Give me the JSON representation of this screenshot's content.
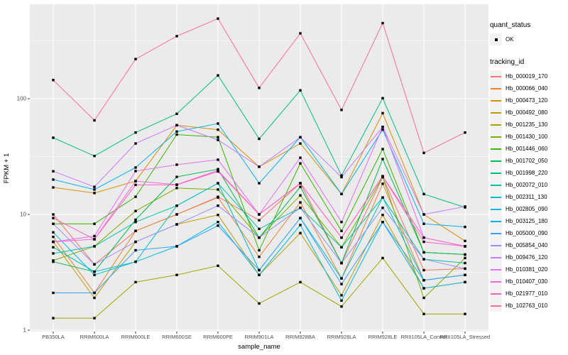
{
  "figure": {
    "background": "#FFFFFF",
    "panel_background": "#EBEBEB",
    "grid_major_color": "#FFFFFF",
    "grid_minor_color": "#F7F7F7",
    "tick_label_color": "#4D4D4D",
    "axis_title_color": "#000000",
    "tick_mark_color": "#333333",
    "point_color": "#000000",
    "legend_key_background": "#F2F2F2"
  },
  "legend": {
    "quant_status_title": "quant_status",
    "quant_status_items": [
      {
        "label": "OK",
        "marker": "black-point"
      }
    ],
    "tracking_id_title": "tracking_id"
  },
  "chart_data": {
    "type": "line",
    "title": "",
    "xlabel": "sample_name",
    "ylabel": "FPKM + 1",
    "y_scale": "log10",
    "ylim": [
      0.97,
      660
    ],
    "grid": true,
    "legend_position": "right",
    "yticks": [
      {
        "value": 1,
        "label": "1"
      },
      {
        "value": 10,
        "label": "10"
      },
      {
        "value": 100,
        "label": "100"
      }
    ],
    "minor_gridline_values": [
      3.162,
      31.62,
      316.2
    ],
    "categories": [
      "PB350LA",
      "RRIM600LA",
      "RRIM600LE",
      "RRIM600SE",
      "RRIM600PE",
      "RRIM901LA",
      "RRIM928BA",
      "RRIM928LA",
      "RRIM928LE",
      "RRII105LA_Control",
      "RRII105LA_Stressed"
    ],
    "series": [
      {
        "name": "Hb_000019_170",
        "color": "#F8766D",
        "values": [
          10,
          3.7,
          7.2,
          10,
          14.2,
          8.9,
          18.6,
          3.8,
          21,
          3.3,
          3.4
        ]
      },
      {
        "name": "Hb_000066_040",
        "color": "#EA8331",
        "values": [
          6.4,
          2.1,
          7.2,
          10,
          14,
          4.3,
          12.7,
          2.8,
          18.4,
          2.7,
          3.0
        ]
      },
      {
        "name": "Hb_000473_120",
        "color": "#D89000",
        "values": [
          17.1,
          15.3,
          19.4,
          59,
          54,
          25.8,
          41,
          15,
          75,
          10,
          5.9
        ]
      },
      {
        "name": "Hb_000492_080",
        "color": "#C09B00",
        "values": [
          5.8,
          1.9,
          5.8,
          8.2,
          9.9,
          3.0,
          6.9,
          2.0,
          9.9,
          2.3,
          2.6
        ]
      },
      {
        "name": "Hb_001235_130",
        "color": "#A3A500",
        "values": [
          1.27,
          1.27,
          2.6,
          3.0,
          3.6,
          1.7,
          2.6,
          1.6,
          4.2,
          1.38,
          1.38
        ]
      },
      {
        "name": "Hb_001430_100",
        "color": "#7CAE00",
        "values": [
          4.0,
          5.3,
          10.7,
          16.9,
          16.4,
          6.3,
          14.6,
          5.2,
          21,
          1.9,
          4.2
        ]
      },
      {
        "name": "Hb_001446_060",
        "color": "#39B600",
        "values": [
          8.3,
          8.3,
          14.2,
          49,
          46.5,
          4.9,
          27.6,
          7.2,
          36.7,
          4.7,
          4.5
        ]
      },
      {
        "name": "Hb_001702_050",
        "color": "#00BB4E",
        "values": [
          3.9,
          3.2,
          9.0,
          21.1,
          24.6,
          6.3,
          17.3,
          3.8,
          30.1,
          4.7,
          4.5
        ]
      },
      {
        "name": "Hb_001998_220",
        "color": "#00BF7D",
        "values": [
          46,
          32,
          51,
          74,
          159,
          45,
          118,
          21.7,
          101,
          15,
          11.5
        ]
      },
      {
        "name": "Hb_002072_010",
        "color": "#00C1A3",
        "values": [
          4.6,
          5.3,
          8.6,
          11.9,
          18.6,
          7.5,
          11.4,
          5.2,
          14,
          4.1,
          3.8
        ]
      },
      {
        "name": "Hb_002311_130",
        "color": "#00BFC4",
        "values": [
          5.2,
          3.2,
          3.9,
          11.9,
          18.6,
          3.3,
          9.3,
          2.8,
          14,
          2.7,
          3.0
        ]
      },
      {
        "name": "Hb_002805_090",
        "color": "#00BAE0",
        "values": [
          7.0,
          3.0,
          3.9,
          5.3,
          8.6,
          3.0,
          8.1,
          1.8,
          8.6,
          2.3,
          2.6
        ]
      },
      {
        "name": "Hb_003125_180",
        "color": "#00B0F6",
        "values": [
          20,
          16.4,
          25.4,
          52,
          61,
          18.6,
          46.5,
          15,
          54,
          8.3,
          7.8
        ]
      },
      {
        "name": "Hb_005000_090",
        "color": "#35A2FF",
        "values": [
          2.1,
          2.1,
          4.9,
          5.3,
          8.0,
          3.3,
          9.3,
          2.5,
          8.6,
          2.7,
          3.0
        ]
      },
      {
        "name": "Hb_005854_040",
        "color": "#9590FF",
        "values": [
          8.3,
          3.7,
          5.8,
          8.2,
          11.9,
          6.3,
          11.4,
          3.8,
          11.4,
          4.1,
          3.4
        ]
      },
      {
        "name": "Hb_009476_120",
        "color": "#C77CFF",
        "values": [
          23.6,
          17.3,
          41,
          59,
          44,
          25.8,
          46.5,
          21,
          57,
          10,
          11.7
        ]
      },
      {
        "name": "Hb_010381_020",
        "color": "#E76BF3",
        "values": [
          5.8,
          6.5,
          23.7,
          26.9,
          29.7,
          10,
          30.9,
          8.6,
          57,
          6.3,
          5.3
        ]
      },
      {
        "name": "Hb_010407_030",
        "color": "#FA62DB",
        "values": [
          5.8,
          6.1,
          19.4,
          18.1,
          24,
          10,
          18.6,
          6.3,
          21.4,
          6.3,
          5.3
        ]
      },
      {
        "name": "Hb_021977_010",
        "color": "#FF62BC",
        "values": [
          9.3,
          6.1,
          18,
          18,
          23.5,
          10,
          18.6,
          6.3,
          21.4,
          5.8,
          5.3
        ]
      },
      {
        "name": "Hb_102763_010",
        "color": "#FF6A98",
        "values": [
          145,
          65,
          220,
          347,
          492,
          124,
          367,
          80,
          450,
          34,
          51
        ]
      }
    ]
  }
}
